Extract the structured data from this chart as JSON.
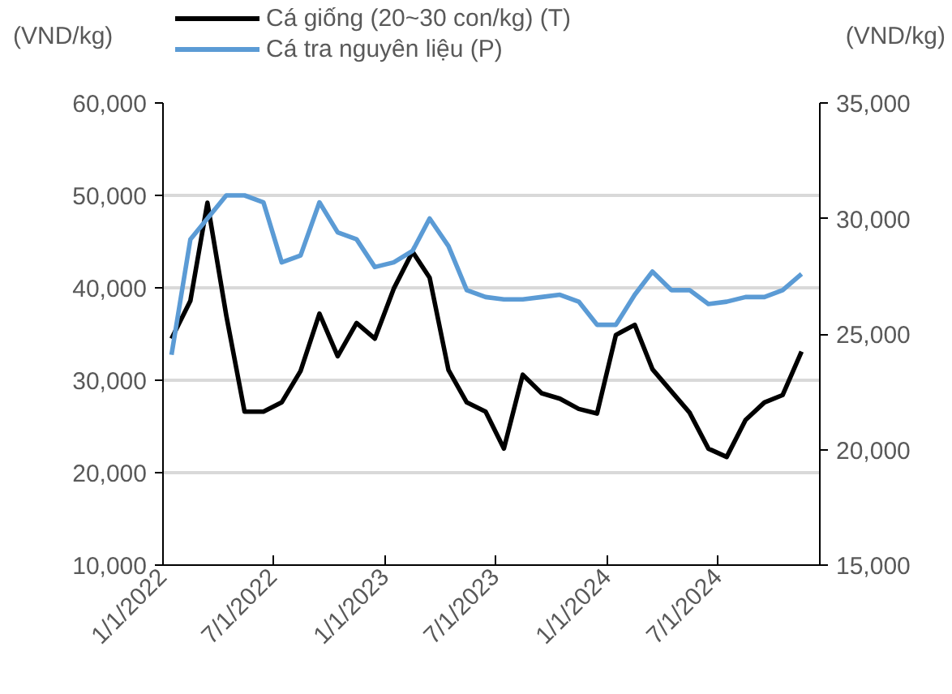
{
  "chart_data": {
    "type": "line",
    "ylabel": "(VND/kg)",
    "y2label": "(VND/kg)",
    "x": [
      "2022-01-15",
      "2022-02-15",
      "2022-03-15",
      "2022-04-15",
      "2022-05-15",
      "2022-06-15",
      "2022-07-15",
      "2022-08-15",
      "2022-09-15",
      "2022-10-15",
      "2022-11-15",
      "2022-12-15",
      "2023-01-15",
      "2023-02-15",
      "2023-03-15",
      "2023-04-15",
      "2023-05-15",
      "2023-06-15",
      "2023-07-15",
      "2023-08-15",
      "2023-09-15",
      "2023-10-15",
      "2023-11-15",
      "2023-12-15",
      "2024-01-15",
      "2024-02-15",
      "2024-03-15",
      "2024-04-15",
      "2024-05-15",
      "2024-06-15",
      "2024-07-15",
      "2024-08-15",
      "2024-09-15",
      "2024-10-15",
      "2024-11-15"
    ],
    "series": [
      {
        "name": "Cá giống (20~30 con/kg) (T)",
        "color": "#000000",
        "values": [
          34500,
          38600,
          49200,
          37000,
          26600,
          26600,
          27600,
          31000,
          37200,
          32600,
          36200,
          34500,
          39900,
          43900,
          41100,
          31100,
          27600,
          26600,
          22600,
          30600,
          28600,
          28000,
          26900,
          26400,
          34900,
          36000,
          31200,
          28800,
          26500,
          22600,
          21700,
          25700,
          27600,
          28400,
          33100
        ]
      },
      {
        "name": "Cá tra nguyên liệu (P)",
        "color": "#5b9bd5",
        "axis": "y2",
        "values": [
          24100,
          29100,
          30000,
          31000,
          31000,
          30700,
          28100,
          28400,
          30700,
          29400,
          29100,
          27900,
          28100,
          28600,
          30000,
          28800,
          26900,
          26600,
          26500,
          26500,
          26600,
          26700,
          26400,
          25400,
          25400,
          26700,
          27700,
          26900,
          26900,
          26300,
          26400,
          26600,
          26600,
          26900,
          27600
        ]
      }
    ],
    "xlim": [
      "2022-01-01",
      "2024-12-15"
    ],
    "xticks": [
      {
        "value": "2022-01-01",
        "label": "1/1/2022"
      },
      {
        "value": "2022-07-01",
        "label": "7/1/2022"
      },
      {
        "value": "2023-01-01",
        "label": "1/1/2023"
      },
      {
        "value": "2023-07-01",
        "label": "7/1/2023"
      },
      {
        "value": "2024-01-01",
        "label": "1/1/2024"
      },
      {
        "value": "2024-07-01",
        "label": "7/1/2024"
      }
    ],
    "ylim": [
      10000,
      60000
    ],
    "yticks": [
      {
        "value": 10000,
        "label": "10,000"
      },
      {
        "value": 20000,
        "label": "20,000"
      },
      {
        "value": 30000,
        "label": "30,000"
      },
      {
        "value": 40000,
        "label": "40,000"
      },
      {
        "value": 50000,
        "label": "50,000"
      },
      {
        "value": 60000,
        "label": "60,000"
      }
    ],
    "y2lim": [
      15000,
      35000
    ],
    "y2ticks": [
      {
        "value": 15000,
        "label": "15,000"
      },
      {
        "value": 20000,
        "label": "20,000"
      },
      {
        "value": 25000,
        "label": "25,000"
      },
      {
        "value": 30000,
        "label": "30,000"
      },
      {
        "value": 35000,
        "label": "35,000"
      }
    ],
    "grid": "y",
    "legend": "top"
  }
}
